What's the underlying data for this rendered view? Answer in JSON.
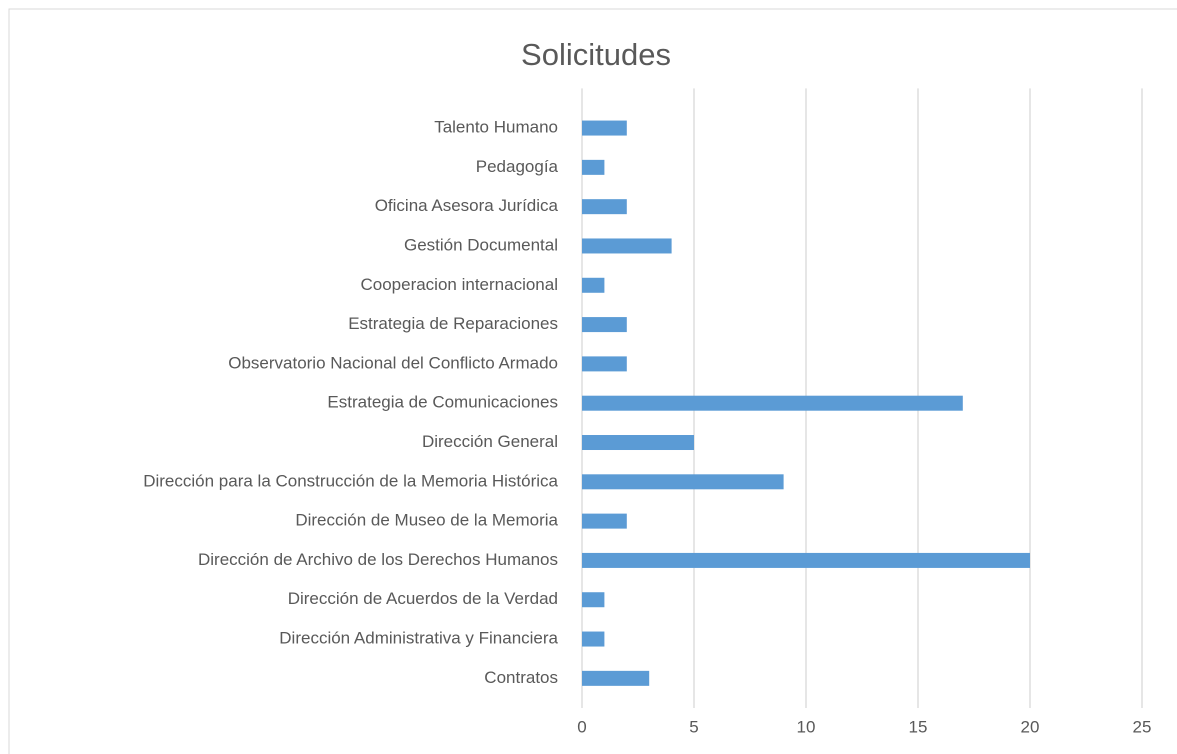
{
  "chart_data": {
    "type": "bar",
    "orientation": "horizontal",
    "title": "Solicitudes",
    "categories": [
      "Talento Humano",
      "Pedagogía",
      "Oficina Asesora Jurídica",
      "Gestión Documental",
      "Cooperacion internacional",
      "Estrategia de Reparaciones",
      "Observatorio Nacional del Conflicto Armado",
      "Estrategia de Comunicaciones",
      "Dirección General",
      "Dirección para la Construcción de la Memoria Histórica",
      "Dirección de Museo de la Memoria ",
      "Dirección de Archivo de los Derechos Humanos",
      "Dirección de Acuerdos de la Verdad",
      "Dirección Administrativa y Financiera",
      "Contratos"
    ],
    "values": [
      2,
      1,
      2,
      4,
      1,
      2,
      2,
      17,
      5,
      9,
      2,
      20,
      1,
      1,
      3
    ],
    "color": "#5b9bd5",
    "xlim": [
      0,
      25
    ],
    "xticks": [
      0,
      5,
      10,
      15,
      20,
      25
    ],
    "grid": true
  }
}
